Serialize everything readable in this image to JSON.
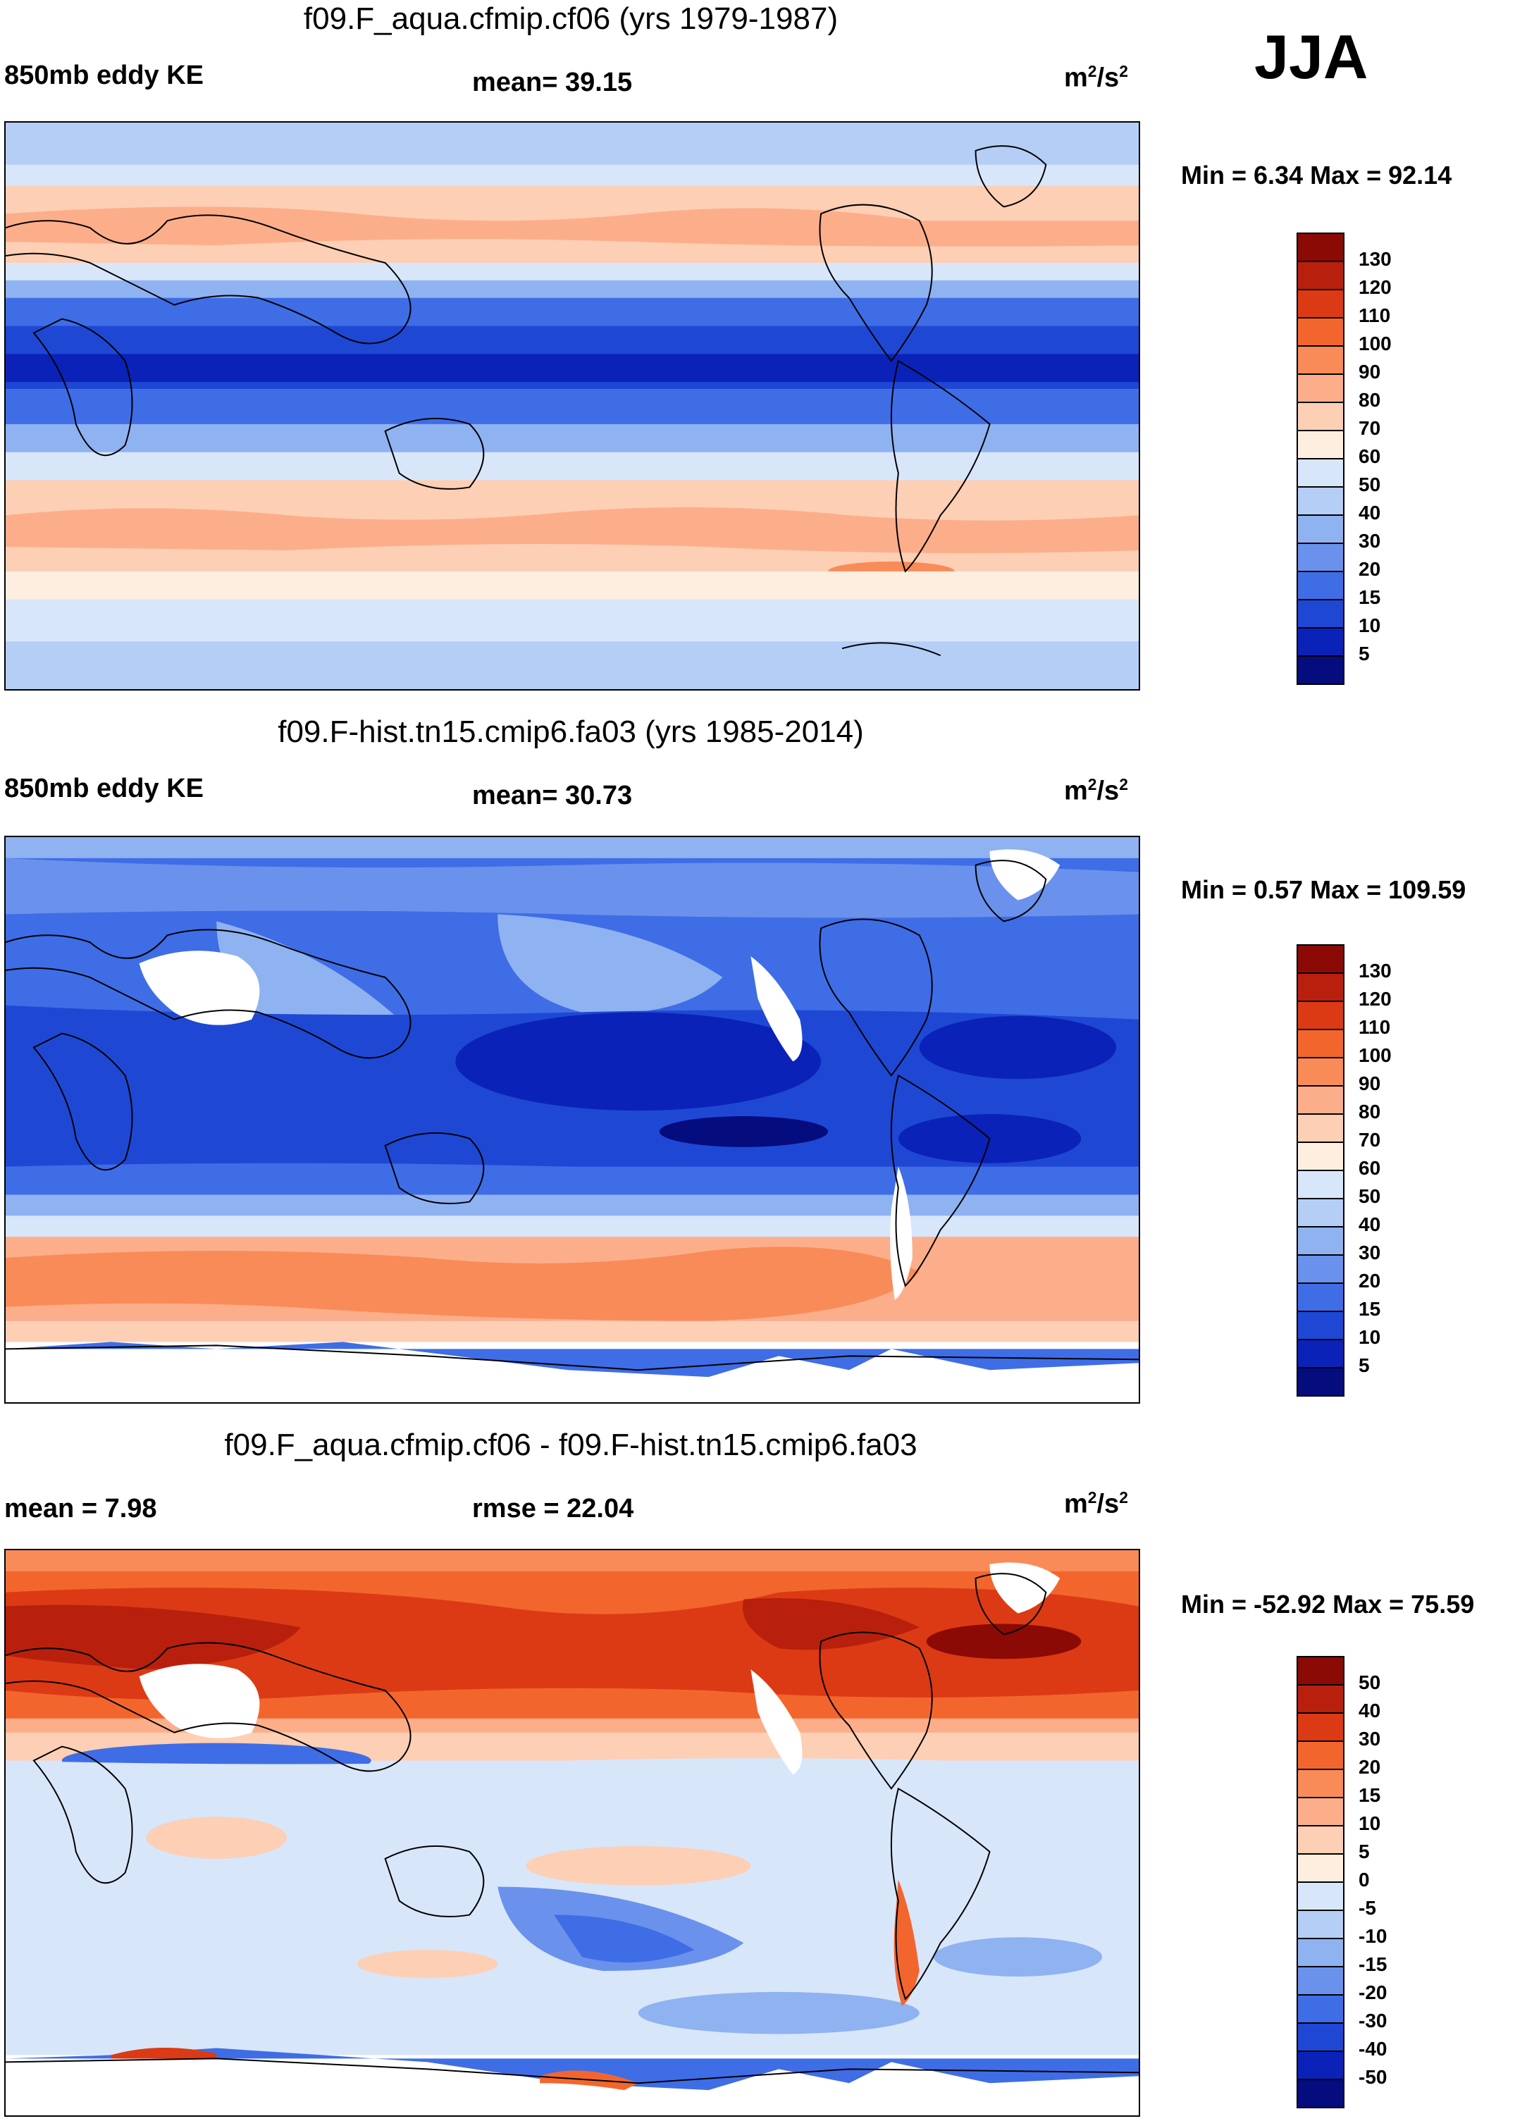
{
  "season": "JJA",
  "panels": [
    {
      "title": "f09.F_aqua.cfmip.cf06 (yrs 1979-1987)",
      "left_label": "850mb eddy KE",
      "center_label": "mean=  39.15",
      "units_base": "m",
      "units_exp1": "2",
      "units_mid": "/s",
      "units_exp2": "2",
      "minmax": "Min =   6.34 Max =  92.14",
      "colorbar_labels": [
        "130",
        "120",
        "110",
        "100",
        "90",
        "80",
        "70",
        "60",
        "50",
        "40",
        "30",
        "20",
        "15",
        "10",
        "5"
      ],
      "colorbar_colors": [
        "#8b0a05",
        "#b8200d",
        "#dc3a14",
        "#f2662e",
        "#f98b58",
        "#fcae8a",
        "#fdcfb5",
        "#fdeee0",
        "#d8e6fa",
        "#b5cef6",
        "#8fb2f1",
        "#6a92ec",
        "#3f6de6",
        "#1e48d4",
        "#0b22b8",
        "#050c7e"
      ]
    },
    {
      "title": "f09.F-hist.tn15.cmip6.fa03 (yrs 1985-2014)",
      "left_label": "850mb eddy KE",
      "center_label": "mean=  30.73",
      "units_base": "m",
      "units_exp1": "2",
      "units_mid": "/s",
      "units_exp2": "2",
      "minmax": "Min =   0.57 Max = 109.59",
      "colorbar_labels": [
        "130",
        "120",
        "110",
        "100",
        "90",
        "80",
        "70",
        "60",
        "50",
        "40",
        "30",
        "20",
        "15",
        "10",
        "5"
      ],
      "colorbar_colors": [
        "#8b0a05",
        "#b8200d",
        "#dc3a14",
        "#f2662e",
        "#f98b58",
        "#fcae8a",
        "#fdcfb5",
        "#fdeee0",
        "#d8e6fa",
        "#b5cef6",
        "#8fb2f1",
        "#6a92ec",
        "#3f6de6",
        "#1e48d4",
        "#0b22b8",
        "#050c7e"
      ]
    },
    {
      "title": "f09.F_aqua.cfmip.cf06 - f09.F-hist.tn15.cmip6.fa03",
      "left_label": "mean =   7.98",
      "center_label": "rmse =  22.04",
      "units_base": "m",
      "units_exp1": "2",
      "units_mid": "/s",
      "units_exp2": "2",
      "minmax": "Min = -52.92 Max =  75.59",
      "colorbar_labels": [
        "50",
        "40",
        "30",
        "20",
        "15",
        "10",
        "5",
        "0",
        "-5",
        "-10",
        "-15",
        "-20",
        "-30",
        "-40",
        "-50"
      ],
      "colorbar_colors": [
        "#8b0a05",
        "#b8200d",
        "#dc3a14",
        "#f2662e",
        "#f98b58",
        "#fcae8a",
        "#fdcfb5",
        "#fdeee0",
        "#d8e6fa",
        "#b5cef6",
        "#8fb2f1",
        "#6a92ec",
        "#3f6de6",
        "#1e48d4",
        "#0b22b8",
        "#050c7e"
      ]
    }
  ]
}
